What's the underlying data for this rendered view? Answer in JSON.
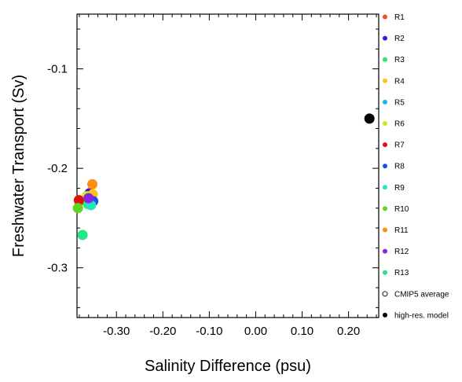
{
  "chart_data": {
    "type": "scatter",
    "xlabel": "Salinity Difference (psu)",
    "ylabel": "Freshwater Transport (Sv)",
    "xlim": [
      -0.385,
      0.265
    ],
    "ylim": [
      -0.35,
      -0.045
    ],
    "x_ticks": [
      -0.3,
      -0.2,
      -0.1,
      0.0,
      0.1,
      0.2
    ],
    "x_tick_labels": [
      "-0.30",
      "-0.20",
      "-0.10",
      "0.00",
      "0.10",
      "0.20"
    ],
    "y_ticks": [
      -0.1,
      -0.2,
      -0.3
    ],
    "y_tick_labels": [
      "-0.1",
      "-0.2",
      "-0.3"
    ],
    "grid": false,
    "legend_position": "right",
    "series": [
      {
        "name": "R1",
        "color": "#f4511e",
        "marker": "filled-circle",
        "points": [
          {
            "x": -0.38,
            "y": -0.233
          }
        ]
      },
      {
        "name": "R2",
        "color": "#4a14d6",
        "marker": "filled-circle",
        "points": [
          {
            "x": -0.358,
            "y": -0.225
          }
        ]
      },
      {
        "name": "R3",
        "color": "#2ee86a",
        "marker": "filled-circle",
        "points": [
          {
            "x": -0.361,
            "y": -0.236
          }
        ]
      },
      {
        "name": "R4",
        "color": "#ffc21a",
        "marker": "filled-circle",
        "points": [
          {
            "x": -0.351,
            "y": -0.226
          }
        ]
      },
      {
        "name": "R5",
        "color": "#1ab2f2",
        "marker": "filled-circle",
        "points": [
          {
            "x": -0.357,
            "y": -0.232
          }
        ]
      },
      {
        "name": "R6",
        "color": "#c8ec16",
        "marker": "filled-circle",
        "points": [
          {
            "x": -0.364,
            "y": -0.228
          }
        ]
      },
      {
        "name": "R7",
        "color": "#e01010",
        "marker": "filled-circle",
        "points": [
          {
            "x": -0.381,
            "y": -0.232
          }
        ]
      },
      {
        "name": "R8",
        "color": "#1a4ee6",
        "marker": "filled-circle",
        "points": [
          {
            "x": -0.35,
            "y": -0.233
          }
        ]
      },
      {
        "name": "R9",
        "color": "#22e6c2",
        "marker": "filled-circle",
        "points": [
          {
            "x": -0.355,
            "y": -0.237
          }
        ]
      },
      {
        "name": "R10",
        "color": "#5cd622",
        "marker": "filled-circle",
        "points": [
          {
            "x": -0.383,
            "y": -0.24
          }
        ]
      },
      {
        "name": "R11",
        "color": "#ff8c14",
        "marker": "filled-circle",
        "points": [
          {
            "x": -0.352,
            "y": -0.216
          }
        ]
      },
      {
        "name": "R12",
        "color": "#8a22e6",
        "marker": "filled-circle",
        "points": [
          {
            "x": -0.36,
            "y": -0.23
          }
        ]
      },
      {
        "name": "R13",
        "color": "#22e688",
        "marker": "filled-circle",
        "points": [
          {
            "x": -0.373,
            "y": -0.267
          }
        ]
      },
      {
        "name": "CMIP5 average",
        "color": "#000000",
        "marker": "open-circle",
        "points": []
      },
      {
        "name": "high-res. model",
        "color": "#000000",
        "marker": "filled-circle",
        "points": [
          {
            "x": 0.245,
            "y": -0.15
          }
        ]
      }
    ]
  }
}
